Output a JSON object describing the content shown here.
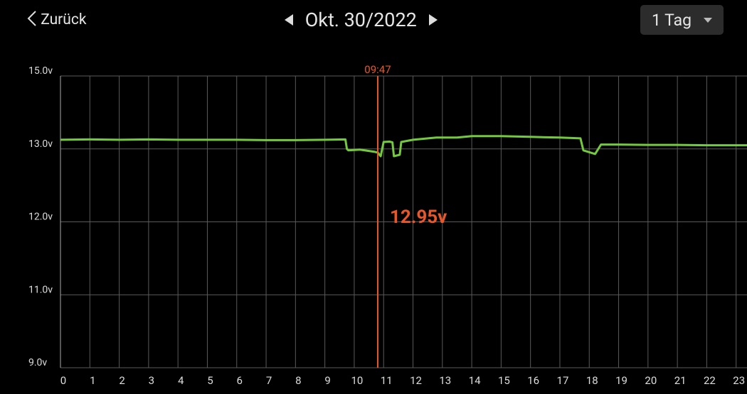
{
  "header": {
    "back": "Zurück",
    "date": "Okt. 30/2022",
    "range": "1 Tag"
  },
  "chart_data": {
    "type": "line",
    "color": "#74c93f",
    "x": [
      0,
      1,
      2,
      3,
      4,
      5,
      6,
      7,
      8,
      9,
      9.7,
      9.75,
      9.8,
      10.2,
      10.7,
      10.8,
      10.9,
      11.0,
      11.2,
      11.3,
      11.35,
      11.55,
      11.6,
      12,
      12.8,
      13.5,
      14,
      15,
      16,
      17,
      17.7,
      17.8,
      18.2,
      18.4,
      19,
      20,
      21,
      22,
      23,
      23.37
    ],
    "values": [
      13.25,
      13.26,
      13.25,
      13.26,
      13.25,
      13.25,
      13.25,
      13.24,
      13.24,
      13.25,
      13.26,
      13.0,
      12.98,
      12.99,
      12.96,
      12.95,
      12.9,
      13.19,
      13.2,
      13.18,
      12.9,
      12.92,
      13.19,
      13.25,
      13.31,
      13.31,
      13.35,
      13.35,
      13.33,
      13.31,
      13.29,
      12.98,
      12.93,
      13.12,
      13.12,
      13.11,
      13.11,
      13.1,
      13.1,
      13.1
    ],
    "xlim": [
      0,
      23.37
    ],
    "xticks": [
      0,
      1,
      2,
      3,
      4,
      5,
      6,
      7,
      8,
      9,
      10,
      11,
      12,
      13,
      14,
      15,
      16,
      17,
      18,
      19,
      20,
      21,
      22,
      23
    ],
    "ylim": [
      9,
      15
    ],
    "yticks": [
      {
        "value": 15,
        "label": "15.0v"
      },
      {
        "value": 13,
        "label": "13.0v"
      },
      {
        "value": 12,
        "label": "12.0v"
      },
      {
        "value": 11,
        "label": "11.0v"
      },
      {
        "value": 9,
        "label": "9.0v"
      }
    ],
    "grid": true,
    "cursor": {
      "x": 10.8,
      "time_label": "09:47",
      "value": 12.95,
      "value_label": "12.95v",
      "color": "#e8572a"
    }
  }
}
